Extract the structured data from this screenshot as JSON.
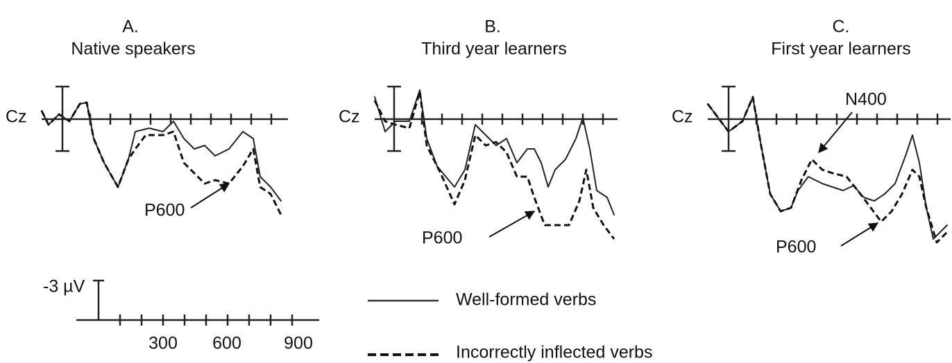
{
  "panels": [
    {
      "letter": "A.",
      "title": "Native speakers",
      "electrode": "Cz",
      "annotations": [
        "P600"
      ]
    },
    {
      "letter": "B.",
      "title": "Third year learners",
      "electrode": "Cz",
      "annotations": [
        "P600"
      ]
    },
    {
      "letter": "C.",
      "title": "First year learners",
      "electrode": "Cz",
      "annotations": [
        "N400",
        "P600"
      ]
    }
  ],
  "scale": {
    "amplitude": "-3 µV",
    "times": [
      "300",
      "600",
      "900"
    ]
  },
  "legend": [
    "Well-formed verbs",
    "Incorrectly inflected verbs"
  ]
}
